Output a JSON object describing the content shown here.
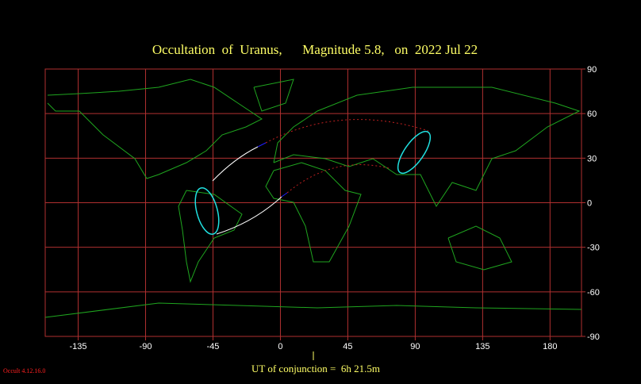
{
  "title": "Occultation  of  Uranus,      Magnitude 5.8,   on  2022 Jul 22",
  "map": {
    "xlim": [
      -157,
      201
    ],
    "ylim": [
      -90,
      90
    ],
    "xticks": [
      -135,
      -90,
      -45,
      0,
      45,
      90,
      135,
      180
    ],
    "yticks": [
      90,
      60,
      30,
      0,
      -30,
      -60,
      -90
    ]
  },
  "footer": {
    "conjunction": "UT of conjunction =  6h 21.5m"
  },
  "version": "Occult 4.12.16.0"
}
